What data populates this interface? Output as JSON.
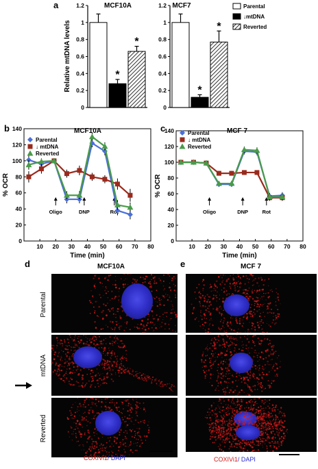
{
  "panels": {
    "a": "a",
    "b": "b",
    "c": "c",
    "d": "d",
    "e": "e"
  },
  "bar_titles": [
    "MCF10A",
    "MCF7"
  ],
  "bar_ylabel": "Relative mtDNA levels",
  "bar_yticks": [
    "0",
    "0.2",
    "0.4",
    "0.6",
    "0.8",
    "1",
    "1.2"
  ],
  "bar_legend": [
    "Parental",
    "↓mtDNA",
    "Reverted"
  ],
  "star": "*",
  "ocr_titles": [
    "MCF10A",
    "MCF 7"
  ],
  "ocr_ylabel": "% OCR",
  "ocr_xlabel": "Time (min)",
  "ocr_legend": [
    "Parental",
    "↓ mtDNA",
    "Reverted"
  ],
  "ocr_annotations": [
    "Oligo",
    "DNP",
    "Rot"
  ],
  "ocr_xticks": [
    "10",
    "20",
    "30",
    "40",
    "50",
    "60",
    "70",
    "80"
  ],
  "ocr_yticks": [
    "0",
    "20",
    "40",
    "60",
    "80",
    "100",
    "120",
    "140"
  ],
  "micro": {
    "titles": [
      "MCF10A",
      "MCF 7"
    ],
    "row_labels": [
      "Parental",
      "mtDNA",
      "Reverted"
    ],
    "stain_label_1": "COXIVi1",
    "stain_label_2": "/ DAPI"
  },
  "colors": {
    "parental": "#4a6fd8",
    "mtdna": "#9a2a1c",
    "reverted": "#4a9a4a",
    "mito_red": "#d01818",
    "nucleus_blue": "#3030c8"
  },
  "chart_data": [
    {
      "type": "bar",
      "title": "MCF10A",
      "ylabel": "Relative mtDNA levels",
      "categories": [
        "Parental",
        "↓mtDNA",
        "Reverted"
      ],
      "values": [
        1.0,
        0.28,
        0.66
      ],
      "errors": [
        0.1,
        0.05,
        0.06
      ],
      "significant": [
        false,
        true,
        true
      ],
      "ylim": [
        0,
        1.2
      ]
    },
    {
      "type": "bar",
      "title": "MCF7",
      "ylabel": "Relative mtDNA levels",
      "categories": [
        "Parental",
        "↓mtDNA",
        "Reverted"
      ],
      "values": [
        1.0,
        0.12,
        0.77
      ],
      "errors": [
        0.1,
        0.03,
        0.13
      ],
      "significant": [
        false,
        true,
        true
      ],
      "ylim": [
        0,
        1.2
      ]
    },
    {
      "type": "line",
      "title": "MCF10A",
      "xlabel": "Time (min)",
      "ylabel": "% OCR",
      "x": [
        3,
        11,
        19,
        27,
        35,
        43,
        51,
        59,
        67
      ],
      "series": [
        {
          "name": "Parental",
          "values": [
            101,
            96,
            100,
            52,
            52,
            122,
            112,
            38,
            33
          ],
          "errors": [
            6,
            4,
            3,
            5,
            5,
            5,
            5,
            6,
            6
          ]
        },
        {
          "name": "↓ mtDNA",
          "values": [
            80,
            90,
            100,
            84,
            88,
            80,
            77,
            71,
            57
          ],
          "errors": [
            7,
            6,
            3,
            5,
            6,
            5,
            5,
            7,
            8
          ]
        },
        {
          "name": "Reverted",
          "values": [
            95,
            99,
            100,
            57,
            57,
            130,
            118,
            45,
            42
          ],
          "errors": [
            6,
            4,
            3,
            5,
            5,
            5,
            5,
            6,
            6
          ]
        }
      ],
      "annotations": [
        {
          "label": "Oligo",
          "x": 20
        },
        {
          "label": "DNP",
          "x": 38
        },
        {
          "label": "Rot",
          "x": 57
        }
      ],
      "xlim": [
        0,
        80
      ],
      "ylim": [
        0,
        140
      ]
    },
    {
      "type": "line",
      "title": "MCF 7",
      "xlabel": "Time (min)",
      "ylabel": "% OCR",
      "x": [
        3,
        11,
        19,
        27,
        35,
        43,
        51,
        59,
        67
      ],
      "series": [
        {
          "name": "Parental",
          "values": [
            100,
            100,
            99,
            72,
            72,
            114,
            113,
            57,
            58
          ],
          "errors": [
            3,
            3,
            3,
            3,
            3,
            4,
            4,
            4,
            4
          ]
        },
        {
          "name": "↓ mtDNA",
          "values": [
            100,
            100,
            99,
            86,
            86,
            87,
            87,
            55,
            55
          ],
          "errors": [
            3,
            3,
            3,
            3,
            3,
            3,
            3,
            4,
            4
          ]
        },
        {
          "name": "Reverted",
          "values": [
            100,
            100,
            99,
            73,
            73,
            116,
            115,
            56,
            56
          ],
          "errors": [
            3,
            3,
            3,
            3,
            3,
            4,
            4,
            4,
            4
          ]
        }
      ],
      "annotations": [
        {
          "label": "Oligo",
          "x": 21
        },
        {
          "label": "DNP",
          "x": 42
        },
        {
          "label": "Rot",
          "x": 57
        }
      ],
      "xlim": [
        0,
        80
      ],
      "ylim": [
        0,
        140
      ]
    }
  ]
}
